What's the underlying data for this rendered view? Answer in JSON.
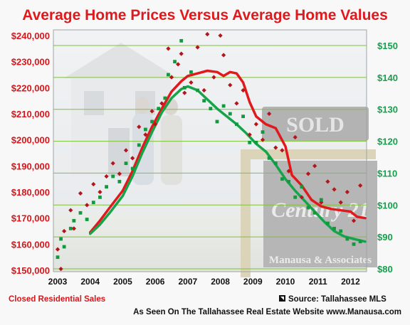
{
  "colors": {
    "price": "#e0191d",
    "value": "#16a34a",
    "grid": "#7ec234",
    "title": "#e0191d"
  },
  "photo": {
    "sign_text": "SOLD",
    "brand_text": "Century 21",
    "company_text": "Manausa & Associates"
  },
  "footer": {
    "left_note": "Closed Residential Sales",
    "source": "Source: Tallahassee MLS",
    "website": "As Seen On The Tallahassee Real Estate Website www.Manausa.com"
  },
  "chart_data": {
    "type": "line",
    "title": "Average Home Prices Versus Average Home Values",
    "xlabel": "",
    "x_ticks": [
      "2003",
      "2004",
      "2005",
      "2006",
      "2007",
      "2008",
      "2009",
      "2010",
      "2011",
      "2012"
    ],
    "xlim": [
      2003,
      2012.45
    ],
    "y_left": {
      "label": "",
      "ticks": [
        "$150,000",
        "$160,000",
        "$170,000",
        "$180,000",
        "$190,000",
        "$200,000",
        "$210,000",
        "$220,000",
        "$230,000",
        "$240,000"
      ],
      "lim": [
        150000,
        240000
      ]
    },
    "y_right": {
      "label": "",
      "ticks": [
        "$80",
        "$90",
        "$100",
        "$110",
        "$120",
        "$130",
        "$140",
        "$150"
      ],
      "lim": [
        80,
        150
      ]
    },
    "grid": true,
    "series": [
      {
        "name": "",
        "axis": "left",
        "style": "line",
        "x": [
          2004.0,
          2004.3,
          2004.6,
          2005.0,
          2005.3,
          2005.6,
          2005.9,
          2006.2,
          2006.5,
          2006.8,
          2007.0,
          2007.3,
          2007.6,
          2007.9,
          2008.1,
          2008.3,
          2008.5,
          2008.7,
          2008.9,
          2009.1,
          2009.4,
          2009.7,
          2010.0,
          2010.2,
          2010.5,
          2010.8,
          2011.1,
          2011.4,
          2011.7,
          2012.0,
          2012.2,
          2012.45
        ],
        "y": [
          164500,
          169000,
          174000,
          180500,
          188000,
          197000,
          205000,
          212000,
          218500,
          222500,
          224500,
          225500,
          226500,
          226000,
          224500,
          226000,
          225500,
          222000,
          214500,
          209000,
          206000,
          204500,
          197500,
          186500,
          182500,
          177000,
          174500,
          173500,
          173000,
          172500,
          170500,
          170000
        ]
      },
      {
        "name": "",
        "axis": "left",
        "style": "line",
        "x": [
          2004.0,
          2004.3,
          2004.6,
          2005.0,
          2005.3,
          2005.6,
          2005.9,
          2006.2,
          2006.5,
          2006.8,
          2007.0,
          2007.3,
          2007.6,
          2007.9,
          2008.2,
          2008.5,
          2008.8,
          2009.1,
          2009.4,
          2009.7,
          2010.0,
          2010.3,
          2010.6,
          2010.9,
          2011.2,
          2011.5,
          2011.8,
          2012.1,
          2012.45
        ],
        "y": [
          164000,
          167500,
          172000,
          178500,
          186000,
          195000,
          203000,
          210500,
          216000,
          219500,
          220500,
          219000,
          215500,
          212000,
          209000,
          206000,
          202500,
          198500,
          195500,
          190500,
          185000,
          180500,
          176500,
          172500,
          168500,
          165000,
          163000,
          162000,
          161000
        ]
      },
      {
        "name": "",
        "axis": "left",
        "style": "points",
        "x": [
          2003.0,
          2003.1,
          2003.2,
          2003.4,
          2003.5,
          2003.7,
          2003.9,
          2004.1,
          2004.3,
          2004.5,
          2004.7,
          2004.9,
          2005.1,
          2005.3,
          2005.5,
          2005.7,
          2005.9,
          2006.0,
          2006.2,
          2006.4,
          2006.5,
          2006.7,
          2006.8,
          2006.9,
          2007.1,
          2007.3,
          2007.5,
          2007.6,
          2007.8,
          2008.0,
          2008.1,
          2008.3,
          2008.5,
          2008.7,
          2008.9,
          2009.1,
          2009.3,
          2009.5,
          2009.7,
          2009.9,
          2010.1,
          2010.3,
          2010.5,
          2010.7,
          2010.9,
          2011.1,
          2011.3,
          2011.5,
          2011.7,
          2011.9,
          2012.1,
          2012.3
        ],
        "y": [
          158000,
          150500,
          165000,
          173000,
          166000,
          179500,
          175000,
          183000,
          180000,
          186000,
          191000,
          187000,
          196000,
          193000,
          205000,
          202000,
          211000,
          206000,
          214000,
          235000,
          224000,
          229000,
          233000,
          218000,
          222000,
          235500,
          219000,
          240500,
          224000,
          240000,
          232500,
          221000,
          214000,
          219000,
          202000,
          206000,
          200000,
          210000,
          197000,
          196000,
          188000,
          201000,
          178000,
          187000,
          190000,
          176000,
          184000,
          181000,
          176000,
          180000,
          169000,
          182500
        ]
      },
      {
        "name": "",
        "axis": "left",
        "style": "points",
        "x": [
          2003.0,
          2003.1,
          2003.2,
          2003.4,
          2003.5,
          2003.7,
          2003.9,
          2004.1,
          2004.3,
          2004.5,
          2004.7,
          2004.9,
          2005.1,
          2005.3,
          2005.5,
          2005.7,
          2005.9,
          2006.1,
          2006.3,
          2006.4,
          2006.6,
          2006.8,
          2006.9,
          2007.1,
          2007.3,
          2007.5,
          2007.7,
          2007.9,
          2008.1,
          2008.3,
          2008.5,
          2008.7,
          2008.9,
          2009.1,
          2009.3,
          2009.5,
          2009.7,
          2009.9,
          2010.1,
          2010.3,
          2010.5,
          2010.7,
          2010.9,
          2011.1,
          2011.3,
          2011.5,
          2011.7,
          2011.9,
          2012.1,
          2012.3
        ],
        "y": [
          155000,
          162000,
          159000,
          166000,
          169000,
          172000,
          169500,
          176000,
          178000,
          182000,
          186000,
          184000,
          191000,
          189000,
          198000,
          204000,
          207000,
          212000,
          216000,
          225000,
          230000,
          238000,
          220000,
          226000,
          219000,
          215000,
          212000,
          207000,
          213000,
          210000,
          206000,
          209000,
          199000,
          199000,
          203000,
          193000,
          191000,
          185000,
          184000,
          178000,
          182000,
          174000,
          172000,
          177000,
          168000,
          166000,
          165000,
          162000,
          160000,
          161000
        ]
      }
    ]
  }
}
